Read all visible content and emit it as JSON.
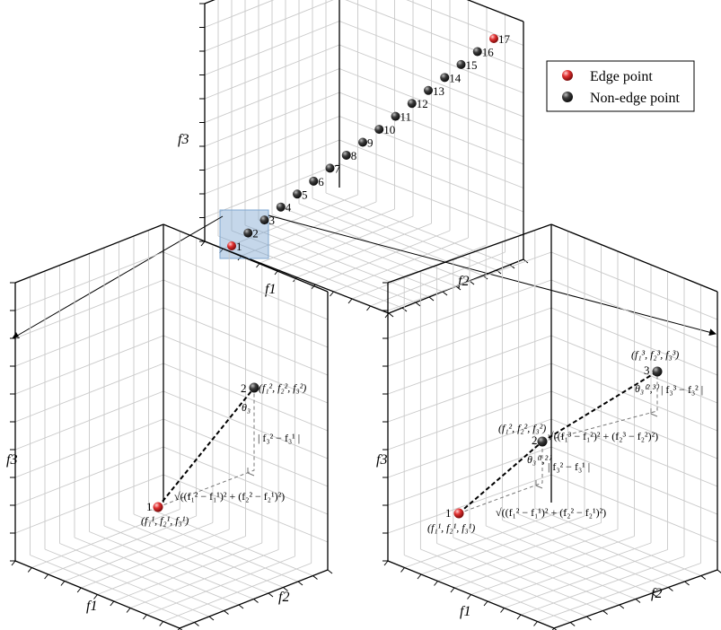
{
  "legend": {
    "edge_label": "Edge point",
    "nonedge_label": "Non-edge point",
    "edge_color": "#e03030",
    "nonedge_color": "#2a2a2a"
  },
  "top_plot": {
    "axis_labels": {
      "x": "f1",
      "y": "f2",
      "z": "f3"
    },
    "points": [
      {
        "label": "1",
        "type": "edge"
      },
      {
        "label": "2",
        "type": "non-edge"
      },
      {
        "label": "3",
        "type": "non-edge"
      },
      {
        "label": "4",
        "type": "non-edge"
      },
      {
        "label": "5",
        "type": "non-edge"
      },
      {
        "label": "6",
        "type": "non-edge"
      },
      {
        "label": "7",
        "type": "non-edge"
      },
      {
        "label": "8",
        "type": "non-edge"
      },
      {
        "label": "9",
        "type": "non-edge"
      },
      {
        "label": "10",
        "type": "non-edge"
      },
      {
        "label": "11",
        "type": "non-edge"
      },
      {
        "label": "12",
        "type": "non-edge"
      },
      {
        "label": "13",
        "type": "non-edge"
      },
      {
        "label": "14",
        "type": "non-edge"
      },
      {
        "label": "15",
        "type": "non-edge"
      },
      {
        "label": "16",
        "type": "non-edge"
      },
      {
        "label": "17",
        "type": "edge"
      }
    ]
  },
  "left_plot": {
    "axis_labels": {
      "x": "f1",
      "y": "f2",
      "z": "f3"
    },
    "point1_label": "1",
    "point2_label": "2",
    "point1_coords": "(f₁¹, f₂¹, f₃¹)",
    "point2_coords": "(f₁², f₂², f₃²)",
    "theta_label": "θ₃",
    "vertical_formula": "| f₃² − f₃¹ |",
    "horizontal_formula": "√((f₁² − f₁¹)² + (f₂² − f₂¹)²)"
  },
  "right_plot": {
    "axis_labels": {
      "x": "f1",
      "y": "f2",
      "z": "f3"
    },
    "point1_label": "1",
    "point2_label": "2",
    "point3_label": "3",
    "point1_coords": "(f₁¹, f₂¹, f₃¹)",
    "point2_coords": "(f₁², f₂², f₃²)",
    "point3_coords": "(f₁³, f₂³, f₃³)",
    "theta12_label": "θ₃⁽¹,²⁾",
    "theta23_label": "θ₃⁽²,³⁾",
    "vertical12_formula": "| f₃² − f₃¹ |",
    "horizontal12_formula": "√((f₁² − f₁¹)² + (f₂² − f₂¹)²)",
    "vertical23_formula": "| f₃³ − f₃² |",
    "horizontal23_formula": "√((f₁³ − f₁²)² + (f₂³ − f₂²)²)"
  }
}
